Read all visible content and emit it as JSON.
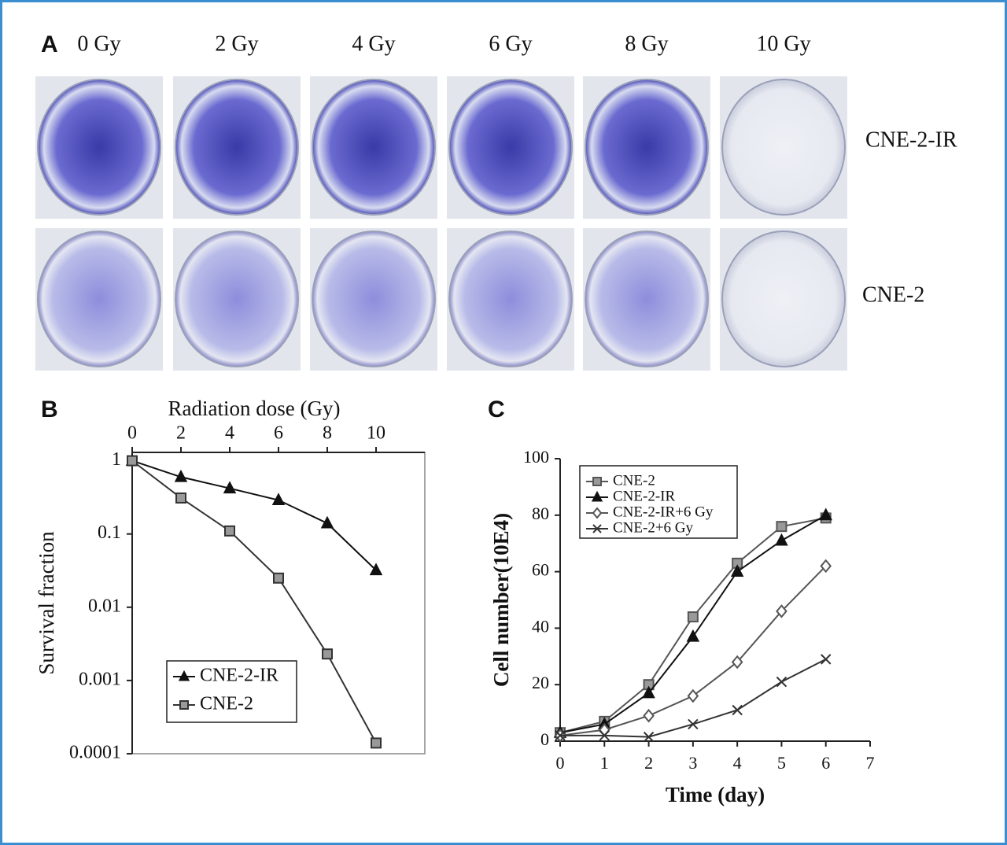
{
  "panel_a": {
    "label": "A",
    "doses": [
      "0 Gy",
      "2 Gy",
      "4 Gy",
      "6 Gy",
      "8 Gy",
      "10 Gy"
    ],
    "rows": [
      "CNE-2-IR",
      "CNE-2"
    ]
  },
  "chart_data": [
    {
      "type": "line",
      "panel": "B",
      "xlabel": "Radiation dose (Gy)",
      "ylabel": "Survival fraction",
      "x": [
        0,
        2,
        4,
        6,
        8,
        10
      ],
      "xlim": [
        0,
        12
      ],
      "xticks": [
        0,
        2,
        4,
        6,
        8,
        10
      ],
      "xaxis_position": "top",
      "yscale": "log",
      "ylim": [
        0.0001,
        1.3
      ],
      "yticks": [
        1,
        0.1,
        0.01,
        0.001,
        0.0001
      ],
      "legend": "lower left",
      "series": [
        {
          "name": "CNE-2-IR",
          "color": "#111111",
          "marker": "triangle",
          "values": [
            1,
            0.6,
            0.42,
            0.29,
            0.14,
            0.032
          ]
        },
        {
          "name": "CNE-2",
          "color": "#333333",
          "marker": "square",
          "values": [
            1,
            0.31,
            0.11,
            0.025,
            0.0023,
            0.00014
          ]
        }
      ]
    },
    {
      "type": "line",
      "panel": "C",
      "xlabel": "Time (day)",
      "ylabel": "Cell number(10E4)",
      "x": [
        0,
        1,
        2,
        3,
        4,
        5,
        6
      ],
      "xlim": [
        0,
        7
      ],
      "xticks": [
        0,
        1,
        2,
        3,
        4,
        5,
        6,
        7
      ],
      "xaxis_position": "bottom",
      "yscale": "linear",
      "ylim": [
        0,
        100
      ],
      "yticks": [
        0,
        20,
        40,
        60,
        80,
        100
      ],
      "legend": "upper left",
      "series": [
        {
          "name": "CNE-2",
          "color": "#555555",
          "marker": "square",
          "values": [
            3,
            7,
            20,
            44,
            63,
            76,
            79
          ]
        },
        {
          "name": "CNE-2-IR",
          "color": "#111111",
          "marker": "triangle",
          "values": [
            3,
            6,
            17,
            37,
            60,
            71,
            80
          ]
        },
        {
          "name": "CNE-2-IR+6 Gy",
          "color": "#555555",
          "marker": "diamond",
          "values": [
            2,
            4,
            9,
            16,
            28,
            46,
            62
          ]
        },
        {
          "name": "CNE-2+6 Gy",
          "color": "#333333",
          "marker": "cross",
          "values": [
            2,
            2,
            1.5,
            6,
            11,
            21,
            29
          ]
        }
      ]
    }
  ]
}
